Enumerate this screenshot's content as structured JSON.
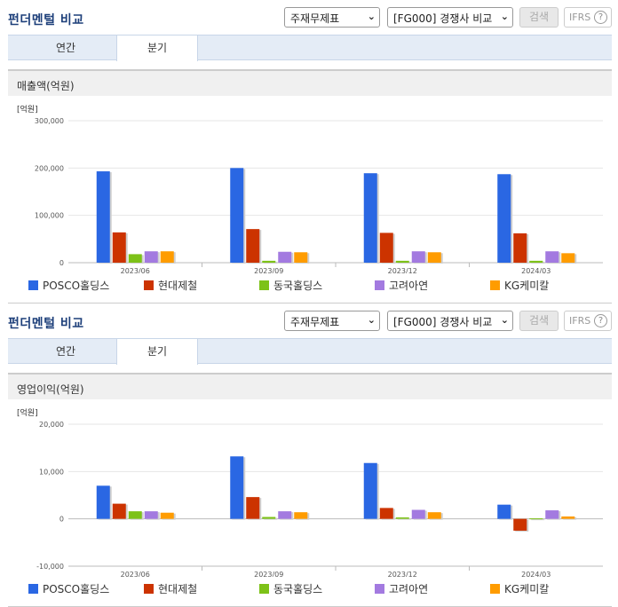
{
  "colors": {
    "POSCO": "#2a67e3",
    "hyundai": "#cc3300",
    "dongkuk": "#7dc218",
    "koreazinc": "#a37ae0",
    "kg": "#ff9c00"
  },
  "panels": [
    {
      "title": "펀더멘털 비교",
      "select1": "주재무제표",
      "select2": "[FG000] 경쟁사 비교",
      "search_label": "검색",
      "ifrs_label": "IFRS",
      "help_icon": "?",
      "tabs": [
        "연간",
        "분기"
      ],
      "active_tab": "분기",
      "metric_title": "매출액(억원)",
      "chart_data": {
        "type": "bar",
        "unit_label": "[억원]",
        "categories": [
          "2023/06",
          "2023/09",
          "2023/12",
          "2024/03"
        ],
        "ylim": [
          0,
          300000
        ],
        "yticks": [
          "300,000",
          "200,000",
          "100,000",
          "0"
        ],
        "ytick_values": [
          300000,
          200000,
          100000,
          0
        ],
        "grid": true,
        "legend_position": "bottom",
        "series": [
          {
            "name": "POSCO홀딩스",
            "values": [
              193000,
              200000,
              189000,
              187000
            ]
          },
          {
            "name": "현대제철",
            "values": [
              64000,
              71000,
              63000,
              62000
            ]
          },
          {
            "name": "동국홀딩스",
            "values": [
              18000,
              4000,
              4000,
              4000
            ]
          },
          {
            "name": "고려아연",
            "values": [
              24000,
              23000,
              24000,
              24000
            ]
          },
          {
            "name": "KG케미칼",
            "values": [
              24000,
              22000,
              22000,
              20000
            ]
          }
        ]
      }
    },
    {
      "title": "펀더멘털 비교",
      "select1": "주재무제표",
      "select2": "[FG000] 경쟁사 비교",
      "search_label": "검색",
      "ifrs_label": "IFRS",
      "help_icon": "?",
      "tabs": [
        "연간",
        "분기"
      ],
      "active_tab": "분기",
      "metric_title": "영업이익(억원)",
      "chart_data": {
        "type": "bar",
        "unit_label": "[억원]",
        "categories": [
          "2023/06",
          "2023/09",
          "2023/12",
          "2024/03"
        ],
        "ylim": [
          -10000,
          20000
        ],
        "yticks": [
          "20,000",
          "10,000",
          "0",
          "-10,000"
        ],
        "ytick_values": [
          20000,
          10000,
          0,
          -10000
        ],
        "grid": true,
        "legend_position": "bottom",
        "series": [
          {
            "name": "POSCO홀딩스",
            "values": [
              7000,
              13200,
              11800,
              3000
            ]
          },
          {
            "name": "현대제철",
            "values": [
              3200,
              4600,
              2300,
              -2500
            ]
          },
          {
            "name": "동국홀딩스",
            "values": [
              1600,
              400,
              300,
              100
            ]
          },
          {
            "name": "고려아연",
            "values": [
              1600,
              1600,
              1900,
              1800
            ]
          },
          {
            "name": "KG케미칼",
            "values": [
              1300,
              1400,
              1400,
              500
            ]
          }
        ]
      }
    }
  ]
}
